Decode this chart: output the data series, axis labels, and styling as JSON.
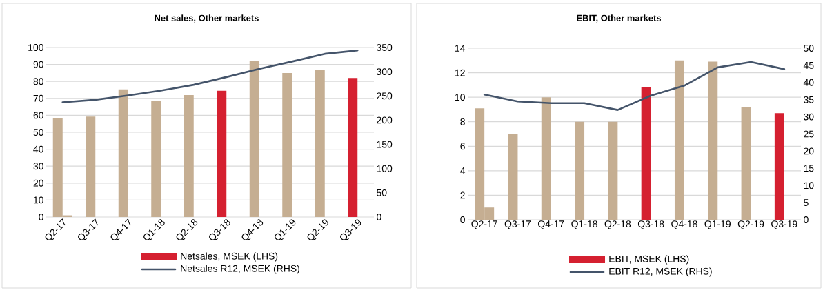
{
  "chart_data": [
    {
      "type": "bar",
      "title": "Net sales, Other markets",
      "categories": [
        "Q2-17",
        "Q3-17",
        "Q4-17",
        "Q1-18",
        "Q2-18",
        "Q3-18",
        "Q4-18",
        "Q1-19",
        "Q2-19",
        "Q3-19"
      ],
      "series": [
        {
          "name": "Netsales, MSEK (LHS)",
          "color": "#d52030",
          "colors": [
            "#c5ae92",
            "#c5ae92",
            "#c5ae92",
            "#c5ae92",
            "#c5ae92",
            "#d52030",
            "#c5ae92",
            "#c5ae92",
            "#c5ae92",
            "#d52030"
          ],
          "values": [
            58.5,
            59.3,
            75.3,
            68.3,
            72,
            74.5,
            92.3,
            85,
            86.7,
            82
          ]
        },
        {
          "color": "#c5ae92",
          "values": [
            1,
            null,
            null,
            null,
            null,
            null,
            null,
            null,
            null,
            null
          ]
        },
        {
          "name": "Netsales R12, MSEK (RHS)",
          "type": "line",
          "axis": "y2",
          "color": "#44546a",
          "values": [
            237,
            242,
            251,
            261,
            273,
            289,
            306,
            321,
            337,
            344
          ]
        }
      ],
      "ylim": [
        0,
        100
      ],
      "yticks": [
        0,
        10,
        20,
        30,
        40,
        50,
        60,
        70,
        80,
        90,
        100
      ],
      "y2lim": [
        0,
        350
      ],
      "y2ticks": [
        0,
        50,
        100,
        150,
        200,
        250,
        300,
        350
      ],
      "grid": "y",
      "legend": "bottom"
    },
    {
      "type": "bar",
      "title": "EBIT, Other markets",
      "categories": [
        "Q2-17",
        "Q3-17",
        "Q4-17",
        "Q1-18",
        "Q2-18",
        "Q3-18",
        "Q4-18",
        "Q1-19",
        "Q2-19",
        "Q3-19"
      ],
      "series": [
        {
          "name": "EBIT, MSEK (LHS)",
          "color": "#d52030",
          "colors": [
            "#c5ae92",
            "#c5ae92",
            "#c5ae92",
            "#c5ae92",
            "#c5ae92",
            "#d52030",
            "#c5ae92",
            "#c5ae92",
            "#c5ae92",
            "#d52030"
          ],
          "values": [
            9.1,
            7.0,
            10.0,
            8.0,
            8.0,
            10.8,
            13.0,
            12.9,
            9.2,
            8.7
          ]
        },
        {
          "color": "#c5ae92",
          "values": [
            1,
            null,
            null,
            null,
            null,
            null,
            null,
            null,
            null,
            null
          ]
        },
        {
          "name": "EBIT R12, MSEK (RHS)",
          "type": "line",
          "axis": "y2",
          "color": "#44546a",
          "values": [
            36.5,
            34.5,
            34,
            34,
            32,
            36.2,
            39.1,
            44.4,
            46,
            43.9
          ]
        }
      ],
      "ylim": [
        0,
        14
      ],
      "yticks": [
        0,
        2,
        4,
        6,
        8,
        10,
        12,
        14
      ],
      "y2lim": [
        0,
        50
      ],
      "y2ticks": [
        0,
        5,
        10,
        15,
        20,
        25,
        30,
        35,
        40,
        45,
        50
      ],
      "grid": "y",
      "legend": "bottom"
    }
  ]
}
